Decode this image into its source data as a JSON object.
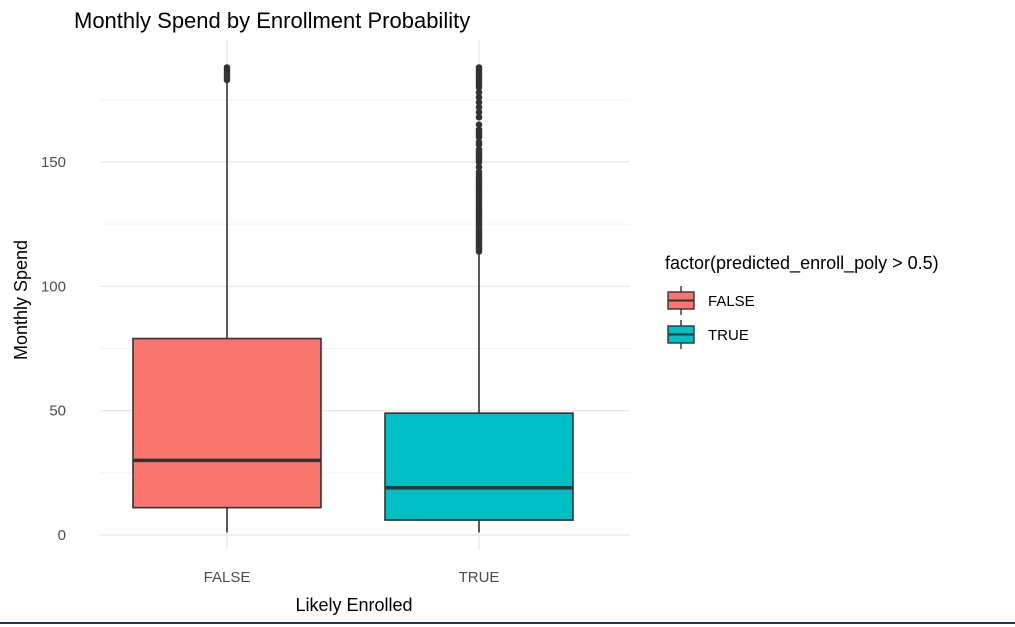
{
  "chart_data": {
    "type": "box",
    "title": "Monthly Spend by Enrollment Probability",
    "xlabel": "Likely Enrolled",
    "ylabel": "Monthly Spend",
    "categories": [
      "FALSE",
      "TRUE"
    ],
    "ylim": [
      -5,
      192
    ],
    "y_ticks": [
      0,
      50,
      100,
      150
    ],
    "y_tick_labels": [
      "0",
      "50",
      "100",
      "150"
    ],
    "grid": true,
    "legend": {
      "title": "factor(predicted_enroll_poly > 0.5)",
      "placement": "right",
      "entries": [
        "FALSE",
        "TRUE"
      ]
    },
    "colors": {
      "FALSE": "#F8766D",
      "TRUE": "#00BFC4"
    },
    "series": [
      {
        "category": "FALSE",
        "min": 1,
        "q1": 11,
        "median": 30,
        "q3": 79,
        "whisker_high": 182,
        "outliers": [
          183,
          184,
          185,
          186,
          187,
          188
        ]
      },
      {
        "category": "TRUE",
        "min": 1,
        "q1": 6,
        "median": 19,
        "q3": 49,
        "whisker_high": 113,
        "outliers": [
          114,
          115,
          116,
          117,
          118,
          119,
          120,
          121,
          122,
          123,
          124,
          125,
          126,
          127,
          128,
          129,
          130,
          131,
          132,
          133,
          134,
          135,
          136,
          137,
          138,
          139,
          140,
          141,
          142,
          143,
          144,
          145,
          146,
          148,
          150,
          151,
          152,
          153,
          154,
          155,
          157,
          158,
          160,
          161,
          162,
          163,
          165,
          168,
          170,
          172,
          174,
          176,
          178,
          180,
          181,
          182,
          183,
          184,
          185,
          186,
          187,
          188
        ]
      }
    ]
  }
}
